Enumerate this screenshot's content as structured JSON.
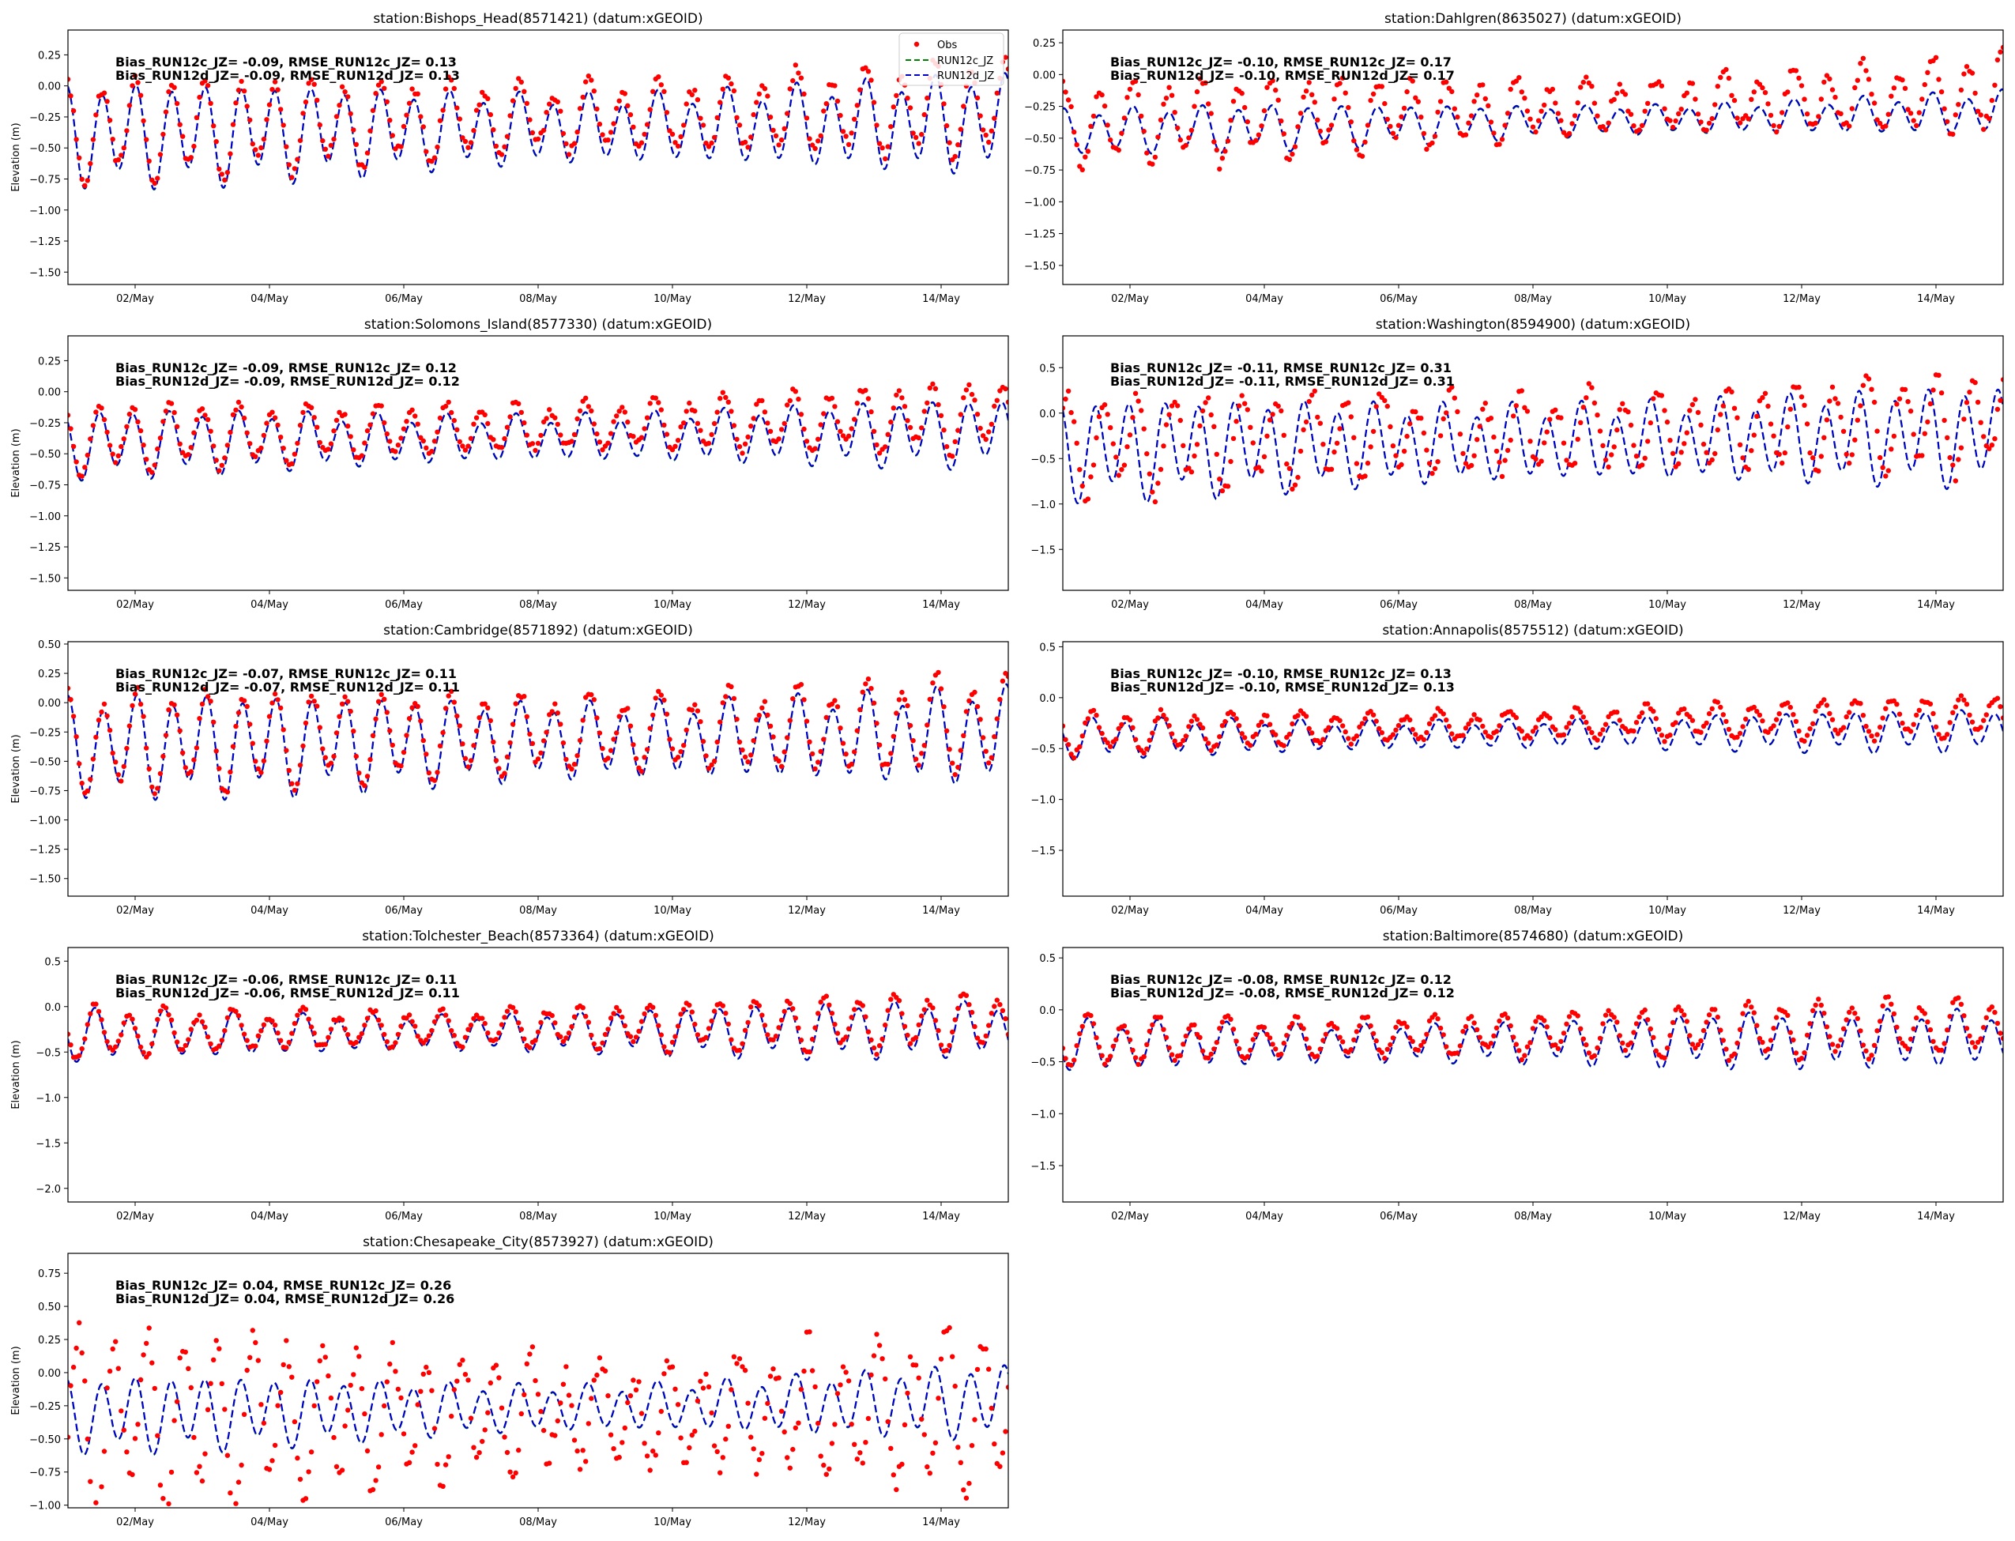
{
  "figure": {
    "legend": {
      "obs": "Obs",
      "run12c": "RUN12c_JZ",
      "run12d": "RUN12d_JZ"
    },
    "colors": {
      "obs": "#ff0000",
      "run12c": "#008000",
      "run12d": "#0000cc",
      "axis": "#000000"
    }
  },
  "chart_data": [
    {
      "type": "line",
      "title": "station:Bishops_Head(8571421) (datum:xGEOID)",
      "ylabel": "Elevation (m)",
      "xticks": [
        "02/May",
        "04/May",
        "06/May",
        "08/May",
        "10/May",
        "12/May",
        "14/May"
      ],
      "xlim_days": [
        1.0,
        15.0
      ],
      "ylim": [
        -1.6,
        0.45
      ],
      "yticks": [
        -1.5,
        -1.25,
        -1.0,
        -0.75,
        -0.5,
        -0.25,
        0.0,
        0.25
      ],
      "ytick_labels": [
        "−1.50",
        "−1.25",
        "−1.00",
        "−0.75",
        "−0.50",
        "−0.25",
        "0.00",
        "0.25"
      ],
      "stats": [
        "Bias_RUN12c_JZ= -0.09, RMSE_RUN12c_JZ=  0.13",
        "Bias_RUN12d_JZ= -0.09, RMSE_RUN12d_JZ=  0.13"
      ],
      "legend_shown": true,
      "model_series": {
        "mean_start": -0.4,
        "mean_end": -0.3,
        "amp": 0.3,
        "amp_var": 0.06,
        "phase": 0.6
      },
      "obs_series": {
        "bias": 0.09,
        "amp_factor": 1.0,
        "noise": 0.04
      }
    },
    {
      "type": "line",
      "title": "station:Dahlgren(8635027) (datum:xGEOID)",
      "ylabel": "",
      "xticks": [
        "02/May",
        "04/May",
        "06/May",
        "08/May",
        "10/May",
        "12/May",
        "14/May"
      ],
      "xlim_days": [
        1.0,
        15.0
      ],
      "ylim": [
        -1.65,
        0.35
      ],
      "yticks": [
        -1.5,
        -1.25,
        -1.0,
        -0.75,
        -0.5,
        -0.25,
        0.0,
        0.25
      ],
      "ytick_labels": [
        "−1.50",
        "−1.25",
        "−1.00",
        "−0.75",
        "−0.50",
        "−0.25",
        "0.00",
        "0.25"
      ],
      "stats": [
        "Bias_RUN12c_JZ= -0.10, RMSE_RUN12c_JZ=  0.17",
        "Bias_RUN12d_JZ= -0.10, RMSE_RUN12d_JZ=  0.17"
      ],
      "legend_shown": false,
      "model_series": {
        "mean_start": -0.45,
        "mean_end": -0.3,
        "amp": 0.13,
        "amp_var": 0.03,
        "phase": 0.2
      },
      "obs_series": {
        "bias": 0.1,
        "amp_factor": 1.8,
        "noise": 0.05
      }
    },
    {
      "type": "line",
      "title": "station:Solomons_Island(8577330) (datum:xGEOID)",
      "ylabel": "Elevation (m)",
      "xticks": [
        "02/May",
        "04/May",
        "06/May",
        "08/May",
        "10/May",
        "12/May",
        "14/May"
      ],
      "xlim_days": [
        1.0,
        15.0
      ],
      "ylim": [
        -1.6,
        0.45
      ],
      "yticks": [
        -1.5,
        -1.25,
        -1.0,
        -0.75,
        -0.5,
        -0.25,
        0.0,
        0.25
      ],
      "ytick_labels": [
        "−1.50",
        "−1.25",
        "−1.00",
        "−0.75",
        "−0.50",
        "−0.25",
        "0.00",
        "0.25"
      ],
      "stats": [
        "Bias_RUN12c_JZ= -0.09, RMSE_RUN12c_JZ=  0.12",
        "Bias_RUN12d_JZ= -0.09, RMSE_RUN12d_JZ=  0.12"
      ],
      "legend_shown": false,
      "model_series": {
        "mean_start": -0.42,
        "mean_end": -0.33,
        "amp": 0.2,
        "amp_var": 0.04,
        "phase": 1.1
      },
      "obs_series": {
        "bias": 0.09,
        "amp_factor": 1.0,
        "noise": 0.03
      }
    },
    {
      "type": "line",
      "title": "station:Washington(8594900) (datum:xGEOID)",
      "ylabel": "",
      "xticks": [
        "02/May",
        "04/May",
        "06/May",
        "08/May",
        "10/May",
        "12/May",
        "14/May"
      ],
      "xlim_days": [
        1.0,
        15.0
      ],
      "ylim": [
        -1.95,
        0.85
      ],
      "yticks": [
        -1.5,
        -1.0,
        -0.5,
        0.0,
        0.5
      ],
      "ytick_labels": [
        "−1.5",
        "−1.0",
        "−0.5",
        "0.0",
        "0.5"
      ],
      "stats": [
        "Bias_RUN12c_JZ= -0.11, RMSE_RUN12c_JZ=  0.31",
        "Bias_RUN12d_JZ= -0.11, RMSE_RUN12d_JZ=  0.31"
      ],
      "legend_shown": false,
      "model_series": {
        "mean_start": -0.4,
        "mean_end": -0.25,
        "amp": 0.42,
        "amp_var": 0.06,
        "phase": 0.9
      },
      "obs_series": {
        "bias": 0.11,
        "amp_factor": 1.0,
        "noise": 0.08,
        "lag": 0.12
      }
    },
    {
      "type": "line",
      "title": "station:Cambridge(8571892) (datum:xGEOID)",
      "ylabel": "Elevation (m)",
      "xticks": [
        "02/May",
        "04/May",
        "06/May",
        "08/May",
        "10/May",
        "12/May",
        "14/May"
      ],
      "xlim_days": [
        1.0,
        15.0
      ],
      "ylim": [
        -1.65,
        0.52
      ],
      "yticks": [
        -1.5,
        -1.25,
        -1.0,
        -0.75,
        -0.5,
        -0.25,
        0.0,
        0.25,
        0.5
      ],
      "ytick_labels": [
        "−1.50",
        "−1.25",
        "−1.00",
        "−0.75",
        "−0.50",
        "−0.25",
        "0.00",
        "0.25",
        "0.50"
      ],
      "stats": [
        "Bias_RUN12c_JZ= -0.07, RMSE_RUN12c_JZ=  0.11",
        "Bias_RUN12d_JZ= -0.07, RMSE_RUN12d_JZ=  0.11"
      ],
      "legend_shown": false,
      "model_series": {
        "mean_start": -0.38,
        "mean_end": -0.28,
        "amp": 0.33,
        "amp_var": 0.05,
        "phase": 0.4
      },
      "obs_series": {
        "bias": 0.07,
        "amp_factor": 1.0,
        "noise": 0.04
      }
    },
    {
      "type": "line",
      "title": "station:Annapolis(8575512) (datum:xGEOID)",
      "ylabel": "",
      "xticks": [
        "02/May",
        "04/May",
        "06/May",
        "08/May",
        "10/May",
        "12/May",
        "14/May"
      ],
      "xlim_days": [
        1.0,
        15.0
      ],
      "ylim": [
        -1.95,
        0.55
      ],
      "yticks": [
        -1.5,
        -1.0,
        -0.5,
        0.0,
        0.5
      ],
      "ytick_labels": [
        "−1.5",
        "−1.0",
        "−0.5",
        "0.0",
        "0.5"
      ],
      "stats": [
        "Bias_RUN12c_JZ= -0.10, RMSE_RUN12c_JZ=  0.13",
        "Bias_RUN12d_JZ= -0.10, RMSE_RUN12d_JZ=  0.13"
      ],
      "legend_shown": false,
      "model_series": {
        "mean_start": -0.4,
        "mean_end": -0.32,
        "amp": 0.15,
        "amp_var": 0.03,
        "phase": 1.5
      },
      "obs_series": {
        "bias": 0.1,
        "amp_factor": 1.0,
        "noise": 0.03
      }
    },
    {
      "type": "line",
      "title": "station:Tolchester_Beach(8573364) (datum:xGEOID)",
      "ylabel": "Elevation (m)",
      "xticks": [
        "02/May",
        "04/May",
        "06/May",
        "08/May",
        "10/May",
        "12/May",
        "14/May"
      ],
      "xlim_days": [
        1.0,
        15.0
      ],
      "ylim": [
        -2.15,
        0.65
      ],
      "yticks": [
        -2.0,
        -1.5,
        -1.0,
        -0.5,
        0.0,
        0.5
      ],
      "ytick_labels": [
        "−2.0",
        "−1.5",
        "−1.0",
        "−0.5",
        "0.0",
        "0.5"
      ],
      "stats": [
        "Bias_RUN12c_JZ= -0.06, RMSE_RUN12c_JZ=  0.11",
        "Bias_RUN12d_JZ= -0.06, RMSE_RUN12d_JZ=  0.11"
      ],
      "legend_shown": false,
      "model_series": {
        "mean_start": -0.32,
        "mean_end": -0.25,
        "amp": 0.22,
        "amp_var": 0.05,
        "phase": 1.9
      },
      "obs_series": {
        "bias": 0.06,
        "amp_factor": 1.0,
        "noise": 0.03
      }
    },
    {
      "type": "line",
      "title": "station:Baltimore(8574680) (datum:xGEOID)",
      "ylabel": "",
      "xticks": [
        "02/May",
        "04/May",
        "06/May",
        "08/May",
        "10/May",
        "12/May",
        "14/May"
      ],
      "xlim_days": [
        1.0,
        15.0
      ],
      "ylim": [
        -1.85,
        0.6
      ],
      "yticks": [
        -1.5,
        -1.0,
        -0.5,
        0.0,
        0.5
      ],
      "ytick_labels": [
        "−1.5",
        "−1.0",
        "−0.5",
        "0.0",
        "0.5"
      ],
      "stats": [
        "Bias_RUN12c_JZ= -0.08, RMSE_RUN12c_JZ=  0.12",
        "Bias_RUN12d_JZ= -0.08, RMSE_RUN12d_JZ=  0.12"
      ],
      "legend_shown": false,
      "model_series": {
        "mean_start": -0.35,
        "mean_end": -0.27,
        "amp": 0.2,
        "amp_var": 0.04,
        "phase": 2.2
      },
      "obs_series": {
        "bias": 0.08,
        "amp_factor": 1.0,
        "noise": 0.03
      }
    },
    {
      "type": "line",
      "title": "station:Chesapeake_City(8573927) (datum:xGEOID)",
      "ylabel": "Elevation (m)",
      "xticks": [
        "02/May",
        "04/May",
        "06/May",
        "08/May",
        "10/May",
        "12/May",
        "14/May"
      ],
      "xlim_days": [
        1.0,
        15.0
      ],
      "ylim": [
        -1.02,
        0.9
      ],
      "yticks": [
        -1.0,
        -0.75,
        -0.5,
        -0.25,
        0.0,
        0.25,
        0.5,
        0.75
      ],
      "ytick_labels": [
        "−1.00",
        "−0.75",
        "−0.50",
        "−0.25",
        "0.00",
        "0.25",
        "0.50",
        "0.75"
      ],
      "stats": [
        "Bias_RUN12c_JZ=  0.04, RMSE_RUN12c_JZ=  0.26",
        "Bias_RUN12d_JZ=  0.04, RMSE_RUN12d_JZ=  0.26"
      ],
      "legend_shown": false,
      "model_series": {
        "mean_start": -0.32,
        "mean_end": -0.22,
        "amp": 0.2,
        "amp_var": 0.05,
        "phase": 0.7
      },
      "obs_series": {
        "bias": -0.04,
        "amp_factor": 2.3,
        "noise": 0.1,
        "lag": 0.18
      }
    }
  ]
}
